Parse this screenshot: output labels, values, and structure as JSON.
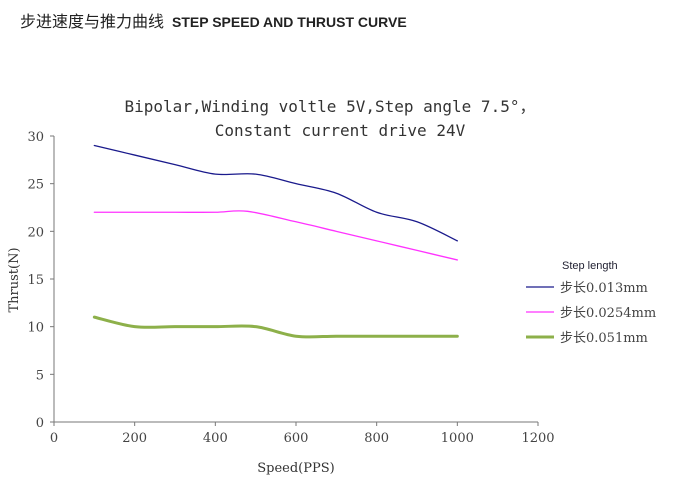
{
  "header": {
    "title_cn": "步进速度与推力曲线",
    "title_en": "STEP SPEED AND THRUST CURVE"
  },
  "chart_data": {
    "type": "line",
    "title": [
      "Bipolar,Winding voltle 5V,Step angle 7.5°，",
      "Constant current drive 24V"
    ],
    "xlabel": "Speed(PPS)",
    "ylabel": "Thrust(N)",
    "xlim": [
      0,
      1200
    ],
    "ylim": [
      0,
      30
    ],
    "xticks": [
      "0",
      "200",
      "400",
      "600",
      "800",
      "1000",
      "1200"
    ],
    "yticks": [
      "0",
      "5",
      "10",
      "15",
      "20",
      "25",
      "30"
    ],
    "grid": false,
    "legend": {
      "title": "Step length",
      "placement": "right"
    },
    "series": [
      {
        "name": "步长0.013mm",
        "color": "#1a1a8c",
        "width": 1.3,
        "x": [
          100,
          200,
          300,
          400,
          500,
          600,
          700,
          800,
          900,
          1000
        ],
        "y": [
          29,
          28,
          27,
          26,
          26,
          25,
          24,
          22,
          21,
          19
        ]
      },
      {
        "name": "步长0.0254mm",
        "color": "#ff33ff",
        "width": 1.3,
        "x": [
          100,
          200,
          300,
          400,
          480,
          600,
          700,
          800,
          900,
          1000
        ],
        "y": [
          22,
          22,
          22,
          22,
          22.1,
          21,
          20,
          19,
          18,
          17
        ]
      },
      {
        "name": "步长0.051mm",
        "color": "#8db04a",
        "width": 3,
        "x": [
          100,
          200,
          300,
          400,
          500,
          600,
          700,
          800,
          900,
          1000
        ],
        "y": [
          11,
          10,
          10,
          10,
          10,
          9,
          9,
          9,
          9,
          9
        ]
      }
    ]
  }
}
